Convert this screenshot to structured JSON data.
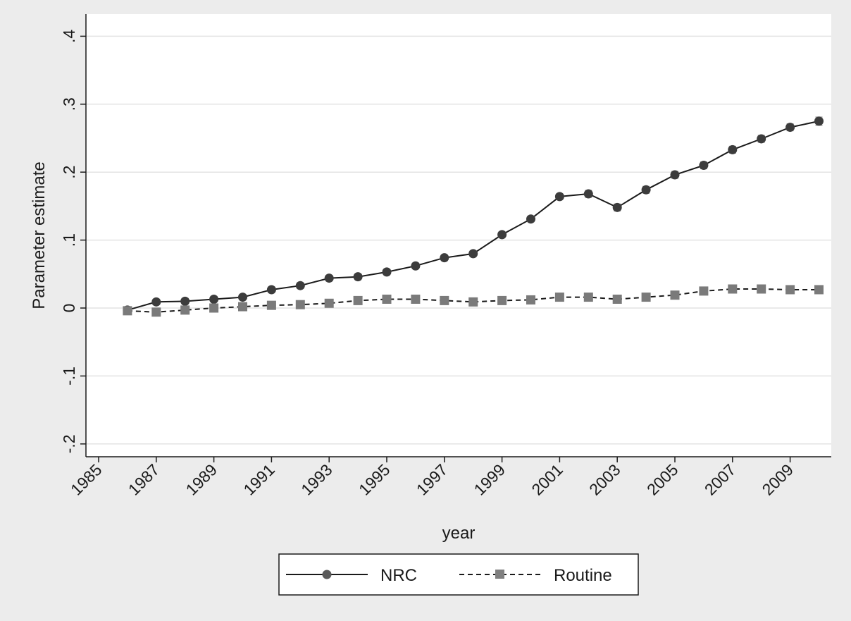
{
  "chart_data": {
    "type": "line",
    "title": "",
    "xlabel": "year",
    "ylabel": "Parameter estimate",
    "xlim": [
      1985,
      2010
    ],
    "ylim": [
      -0.2,
      0.4
    ],
    "x_ticks": [
      1985,
      1987,
      1989,
      1991,
      1993,
      1995,
      1997,
      1999,
      2001,
      2003,
      2005,
      2007,
      2009
    ],
    "x_tick_labels": [
      "1985",
      "1987",
      "1989",
      "1991",
      "1993",
      "1995",
      "1997",
      "1999",
      "2001",
      "2003",
      "2005",
      "2007",
      "2009"
    ],
    "y_ticks": [
      -0.2,
      -0.1,
      0,
      0.1,
      0.2,
      0.3,
      0.4
    ],
    "y_tick_labels": [
      "-.2",
      "-.1",
      "0",
      ".1",
      ".2",
      ".3",
      ".4"
    ],
    "grid": "horizontal",
    "legend_position": "bottom",
    "x": [
      1986,
      1987,
      1988,
      1989,
      1990,
      1991,
      1992,
      1993,
      1994,
      1995,
      1996,
      1997,
      1998,
      1999,
      2000,
      2001,
      2002,
      2003,
      2004,
      2005,
      2006,
      2007,
      2008,
      2009,
      2010
    ],
    "series": [
      {
        "name": "NRC",
        "line_style": "solid",
        "marker": "circle",
        "color": "#3c3c3c",
        "values": [
          -0.003,
          0.009,
          0.01,
          0.013,
          0.016,
          0.027,
          0.033,
          0.044,
          0.046,
          0.053,
          0.062,
          0.074,
          0.08,
          0.108,
          0.131,
          0.164,
          0.168,
          0.148,
          0.174,
          0.196,
          0.21,
          0.233,
          0.249,
          0.266,
          0.275
        ],
        "error": [
          0.004,
          0.004,
          0.004,
          0.004,
          0.004,
          0.004,
          0.004,
          0.004,
          0.004,
          0.004,
          0.004,
          0.004,
          0.004,
          0.004,
          0.004,
          0.004,
          0.005,
          0.005,
          0.005,
          0.005,
          0.005,
          0.005,
          0.005,
          0.005,
          0.006
        ]
      },
      {
        "name": "Routine",
        "line_style": "dashed",
        "marker": "square",
        "color": "#7a7a7a",
        "values": [
          -0.004,
          -0.006,
          -0.003,
          0.0,
          0.002,
          0.004,
          0.005,
          0.007,
          0.011,
          0.013,
          0.013,
          0.011,
          0.009,
          0.011,
          0.012,
          0.016,
          0.016,
          0.013,
          0.016,
          0.019,
          0.025,
          0.028,
          0.028,
          0.027,
          0.027
        ],
        "error": [
          0.003,
          0.003,
          0.003,
          0.003,
          0.003,
          0.003,
          0.003,
          0.003,
          0.003,
          0.003,
          0.003,
          0.003,
          0.003,
          0.003,
          0.003,
          0.003,
          0.003,
          0.003,
          0.003,
          0.003,
          0.003,
          0.003,
          0.003,
          0.003,
          0.003
        ]
      }
    ]
  }
}
